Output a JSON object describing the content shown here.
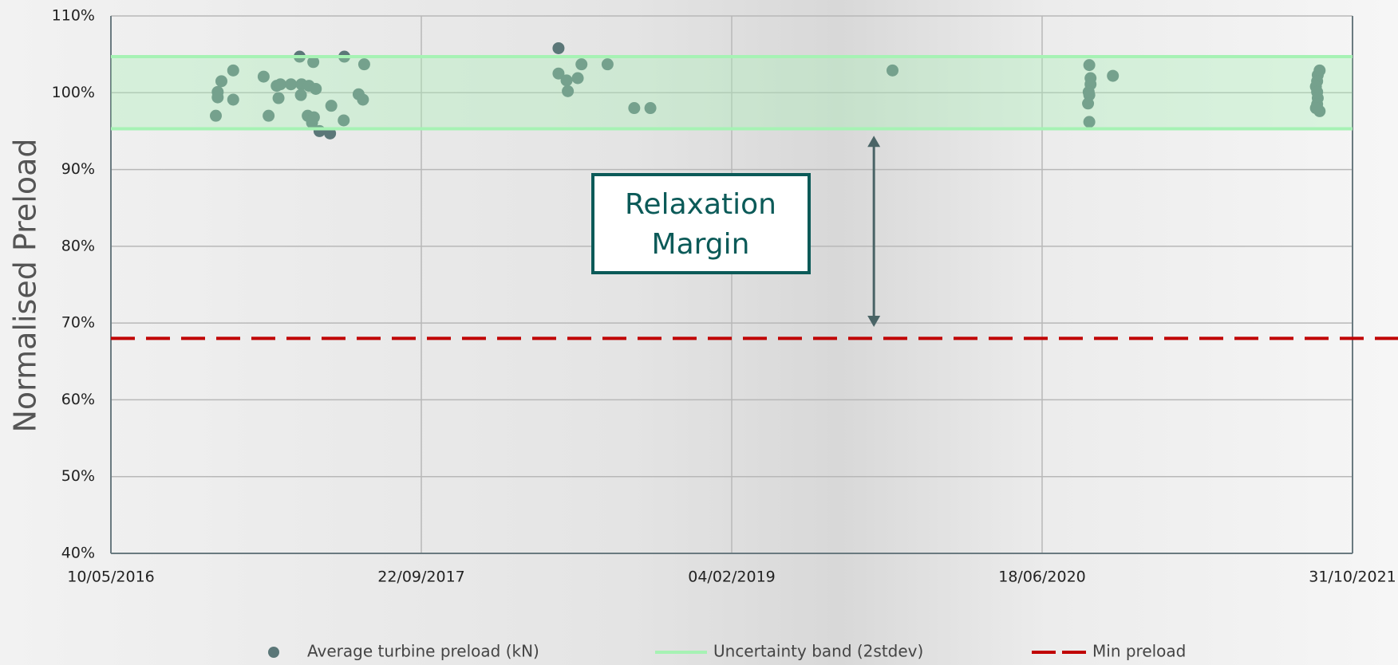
{
  "chart_data": {
    "type": "scatter",
    "ylabel": "Normalised Preload",
    "ylim": [
      40,
      110
    ],
    "yticks": [
      {
        "value": 40,
        "label": "40%"
      },
      {
        "value": 50,
        "label": "50%"
      },
      {
        "value": 60,
        "label": "60%"
      },
      {
        "value": 70,
        "label": "70%"
      },
      {
        "value": 80,
        "label": "80%"
      },
      {
        "value": 90,
        "label": "90%"
      },
      {
        "value": 100,
        "label": "100%"
      },
      {
        "value": 110,
        "label": "110%"
      }
    ],
    "xlim": [
      "2016-05-10",
      "2021-10-31"
    ],
    "xticks": [
      {
        "value": "2016-05-10",
        "label": "10/05/2016"
      },
      {
        "value": "2017-09-22",
        "label": "22/09/2017"
      },
      {
        "value": "2019-02-04",
        "label": "04/02/2019"
      },
      {
        "value": "2020-06-18",
        "label": "18/06/2020"
      },
      {
        "value": "2021-10-31",
        "label": "31/10/2021"
      }
    ],
    "grid": true,
    "legend": "bottom",
    "series": [
      {
        "name": "Average turbine preload (kN)",
        "color": "#5b7778",
        "kind": "points",
        "x": [
          "2016-10-26",
          "2016-10-29",
          "2016-10-29",
          "2016-11-04",
          "2016-11-23",
          "2016-11-23",
          "2017-01-11",
          "2017-01-19",
          "2017-02-01",
          "2017-02-04",
          "2017-02-07",
          "2017-02-24",
          "2017-03-10",
          "2017-03-13",
          "2017-03-12",
          "2017-03-25",
          "2017-04-01",
          "2017-04-05",
          "2017-03-23",
          "2017-03-30",
          "2017-04-02",
          "2017-04-11",
          "2017-04-28",
          "2017-04-30",
          "2017-05-20",
          "2017-05-21",
          "2017-06-13",
          "2017-06-20",
          "2017-06-22",
          "2018-05-01",
          "2018-05-01",
          "2018-05-14",
          "2018-05-16",
          "2018-06-01",
          "2018-06-07",
          "2018-07-19",
          "2018-08-31",
          "2018-09-26",
          "2019-10-21",
          "2020-09-02",
          "2020-09-04",
          "2020-09-04",
          "2020-09-01",
          "2020-09-02",
          "2020-08-31",
          "2020-09-02",
          "2020-10-10",
          "2021-09-08",
          "2021-09-05",
          "2021-09-04",
          "2021-09-02",
          "2021-09-04",
          "2021-09-05",
          "2021-09-04",
          "2021-09-02",
          "2021-09-08"
        ],
        "values": [
          97.0,
          100.1,
          99.4,
          101.5,
          102.9,
          99.1,
          102.1,
          97.0,
          100.9,
          99.3,
          101.1,
          101.1,
          104.7,
          101.1,
          99.7,
          100.9,
          104.0,
          100.5,
          97.0,
          96.1,
          96.8,
          95.0,
          94.7,
          98.3,
          96.4,
          104.7,
          99.8,
          99.1,
          103.7,
          105.8,
          102.5,
          101.6,
          100.2,
          101.9,
          103.7,
          103.7,
          98.0,
          98.0,
          102.9,
          103.6,
          101.9,
          101.1,
          100.1,
          99.7,
          98.6,
          96.2,
          102.2,
          102.9,
          102.3,
          101.5,
          100.8,
          100.1,
          99.3,
          98.5,
          98.0,
          97.6
        ]
      },
      {
        "name": "Uncertainty band (2stdev)",
        "color": "#a6f2b4",
        "kind": "band",
        "values": [
          95.3,
          104.7
        ]
      },
      {
        "name": "Min preload",
        "color": "#c00000",
        "kind": "dashed-hline",
        "values": [
          68
        ]
      }
    ],
    "annotation": {
      "lines": [
        "Relaxation",
        "Margin"
      ],
      "color": "#0b5a58",
      "arrow": {
        "x": "2019-09-21",
        "from": 94.4,
        "to": 69.5,
        "color": "#4a6466"
      }
    }
  }
}
